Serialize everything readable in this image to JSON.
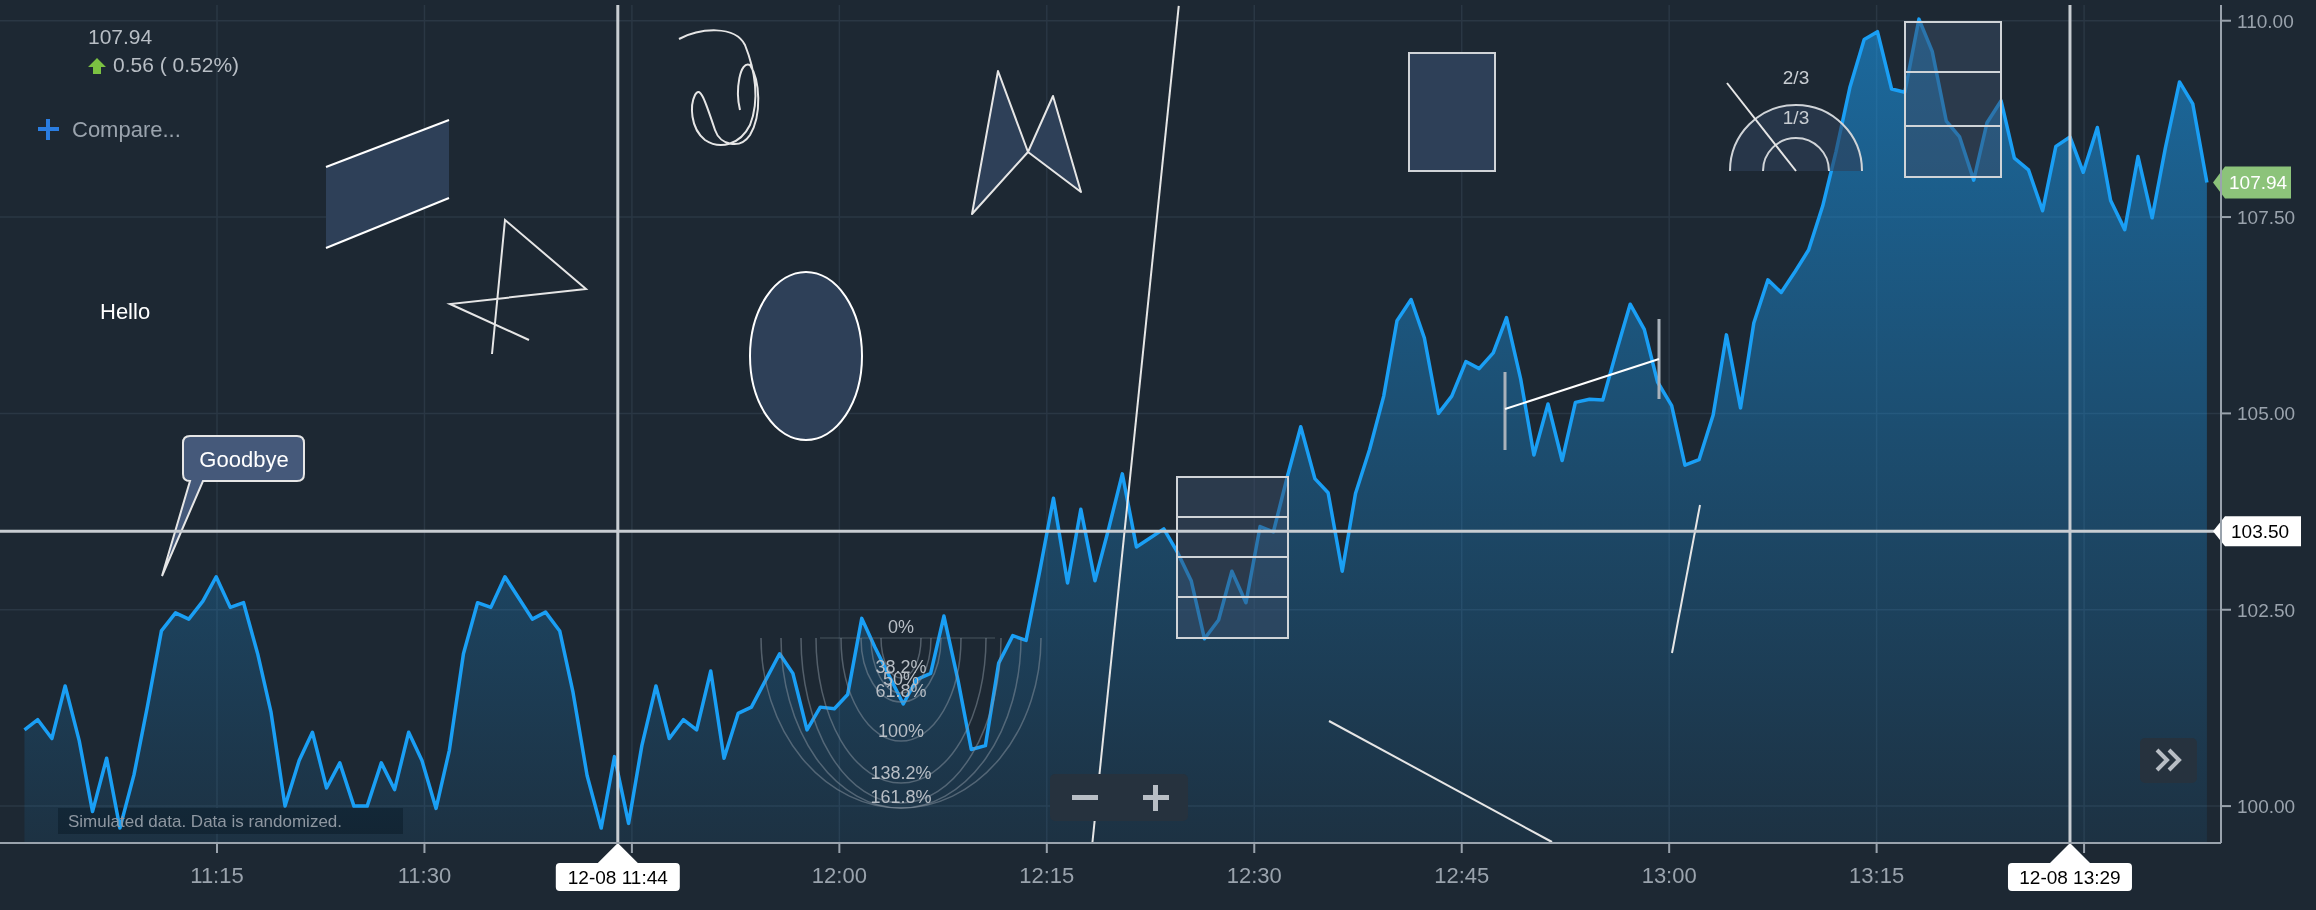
{
  "chart_data": {
    "type": "area",
    "title": "107.94",
    "subtitle": "0.56 ( 0.52%)",
    "x": [
      11.018,
      11.034,
      11.051,
      11.067,
      11.084,
      11.1,
      11.117,
      11.133,
      11.15,
      11.166,
      11.183,
      11.2,
      11.216,
      11.233,
      11.249,
      11.266,
      11.282,
      11.299,
      11.315,
      11.332,
      11.349,
      11.365,
      11.382,
      11.398,
      11.415,
      11.431,
      11.448,
      11.464,
      11.481,
      11.497,
      11.514,
      11.53,
      11.547,
      11.564,
      11.58,
      11.597,
      11.613,
      11.63,
      11.646,
      11.663,
      11.679,
      11.696,
      11.713,
      11.729,
      11.746,
      11.762,
      11.779,
      11.795,
      11.812,
      11.828,
      11.845,
      11.861,
      11.878,
      11.894,
      11.911,
      11.928,
      11.944,
      11.961,
      11.977,
      11.994,
      12.01,
      12.027,
      12.043,
      12.06,
      12.077,
      12.093,
      12.11,
      12.126,
      12.143,
      12.159,
      12.176,
      12.192,
      12.209,
      12.225,
      12.242,
      12.258,
      12.275,
      12.291,
      12.308,
      12.325,
      12.341,
      12.358,
      12.374,
      12.391,
      12.407,
      12.424,
      12.44,
      12.457,
      12.473,
      12.49,
      12.507,
      12.523,
      12.54,
      12.556,
      12.573,
      12.589,
      12.606,
      12.622,
      12.639,
      12.656,
      12.672,
      12.689,
      12.705,
      12.722,
      12.738,
      12.755,
      12.771,
      12.788,
      12.804,
      12.821,
      12.837,
      12.854,
      12.871,
      12.887,
      12.904,
      12.92,
      12.937,
      12.953,
      12.97,
      12.986,
      13.003,
      13.019,
      13.036,
      13.053,
      13.069,
      13.086,
      13.102,
      13.119,
      13.135,
      13.152,
      13.168,
      13.185,
      13.201,
      13.218,
      13.235,
      13.251,
      13.268,
      13.284,
      13.301,
      13.317,
      13.334,
      13.35,
      13.367,
      13.383,
      13.4,
      13.416,
      13.433,
      13.45,
      13.466,
      13.483,
      13.499,
      13.516,
      13.532,
      13.549,
      13.565,
      13.582,
      13.598,
      13.615,
      13.631,
      13.648
    ],
    "series": [
      {
        "color": "#1a9ff5",
        "values": [
          100.97,
          101.1,
          100.86,
          101.53,
          100.83,
          99.93,
          100.61,
          99.72,
          100.4,
          101.26,
          102.23,
          102.46,
          102.38,
          102.61,
          102.92,
          102.53,
          102.59,
          101.94,
          101.2,
          100.0,
          100.58,
          100.94,
          100.23,
          100.55,
          100.0,
          100.0,
          100.55,
          100.21,
          100.94,
          100.58,
          99.97,
          100.71,
          101.94,
          102.59,
          102.53,
          102.92,
          102.66,
          102.38,
          102.47,
          102.23,
          101.45,
          100.39,
          99.72,
          100.63,
          99.78,
          100.77,
          101.53,
          100.86,
          101.1,
          100.97,
          101.72,
          100.61,
          101.18,
          101.26,
          101.6,
          101.94,
          101.69,
          100.97,
          101.26,
          101.24,
          101.42,
          102.39,
          102.02,
          101.66,
          101.3,
          101.61,
          101.69,
          102.42,
          101.6,
          100.72,
          100.77,
          101.82,
          102.17,
          102.11,
          103.02,
          103.92,
          102.84,
          103.78,
          102.87,
          103.55,
          104.23,
          103.3,
          103.41,
          103.53,
          103.24,
          102.87,
          102.13,
          102.37,
          102.99,
          102.59,
          103.56,
          103.49,
          104.2,
          104.83,
          104.17,
          103.99,
          102.99,
          103.98,
          104.54,
          105.22,
          106.18,
          106.45,
          105.96,
          105.0,
          105.22,
          105.66,
          105.57,
          105.77,
          106.22,
          105.44,
          104.47,
          105.12,
          104.4,
          105.14,
          105.18,
          105.17,
          105.81,
          106.39,
          106.07,
          105.4,
          105.1,
          104.34,
          104.41,
          104.98,
          106.0,
          105.07,
          106.15,
          106.7,
          106.54,
          106.81,
          107.08,
          107.64,
          108.33,
          109.16,
          109.76,
          109.86,
          109.13,
          109.09,
          110.02,
          109.61,
          108.72,
          108.52,
          107.97,
          108.7,
          108.98,
          108.25,
          108.1,
          107.58,
          108.4,
          108.52,
          108.07,
          108.64,
          107.71,
          107.34,
          108.27,
          107.49,
          108.38,
          109.22,
          108.94,
          107.94
        ]
      },
      {
        "type": "line",
        "color": "#e6e6e6",
        "x": [
          12.305,
          12.409
        ],
        "values": [
          99.54,
          110.19
        ]
      }
    ],
    "xlim": [
      10.9885,
      13.665
    ],
    "ylim": [
      99.53,
      110.2
    ],
    "xticks": [
      {
        "value": 11.25,
        "label": "11:15"
      },
      {
        "value": 11.5,
        "label": "11:30"
      },
      {
        "value": 11.75,
        "label": null
      },
      {
        "value": 12,
        "label": "12:00"
      },
      {
        "value": 12.25,
        "label": "12:15"
      },
      {
        "value": 12.5,
        "label": "12:30"
      },
      {
        "value": 12.75,
        "label": "12:45"
      },
      {
        "value": 13,
        "label": "13:00"
      },
      {
        "value": 13.25,
        "label": "13:15"
      },
      {
        "value": 13.5,
        "label": null
      }
    ],
    "yticks": [
      {
        "value": 100,
        "label": "100.00"
      },
      {
        "value": 102.5,
        "label": "102.50"
      },
      {
        "value": 105,
        "label": "105.00"
      },
      {
        "value": 107.5,
        "label": "107.50"
      },
      {
        "value": 110,
        "label": "110.00"
      }
    ],
    "grid": true,
    "line_style": "solid",
    "ref_lines": [
      {
        "axis": "y",
        "value": 103.5,
        "label": "103.50",
        "color": "#c8cdd2"
      },
      {
        "axis": "x",
        "value": 11.733,
        "label": "12-08 11:44",
        "color": "#c8cdd2"
      },
      {
        "axis": "x",
        "value": 13.483,
        "label": "12-08 13:29",
        "color": "#c8cdd2"
      }
    ],
    "annotations": [
      "Compare...",
      "Hello",
      "Goodbye",
      "Simulated data. Data is randomized.",
      "0%",
      "38.2%",
      "50%",
      "61.8%",
      "100%",
      "138.2%",
      "161.8%",
      "2/3",
      "1/3",
      "107.94"
    ]
  }
}
